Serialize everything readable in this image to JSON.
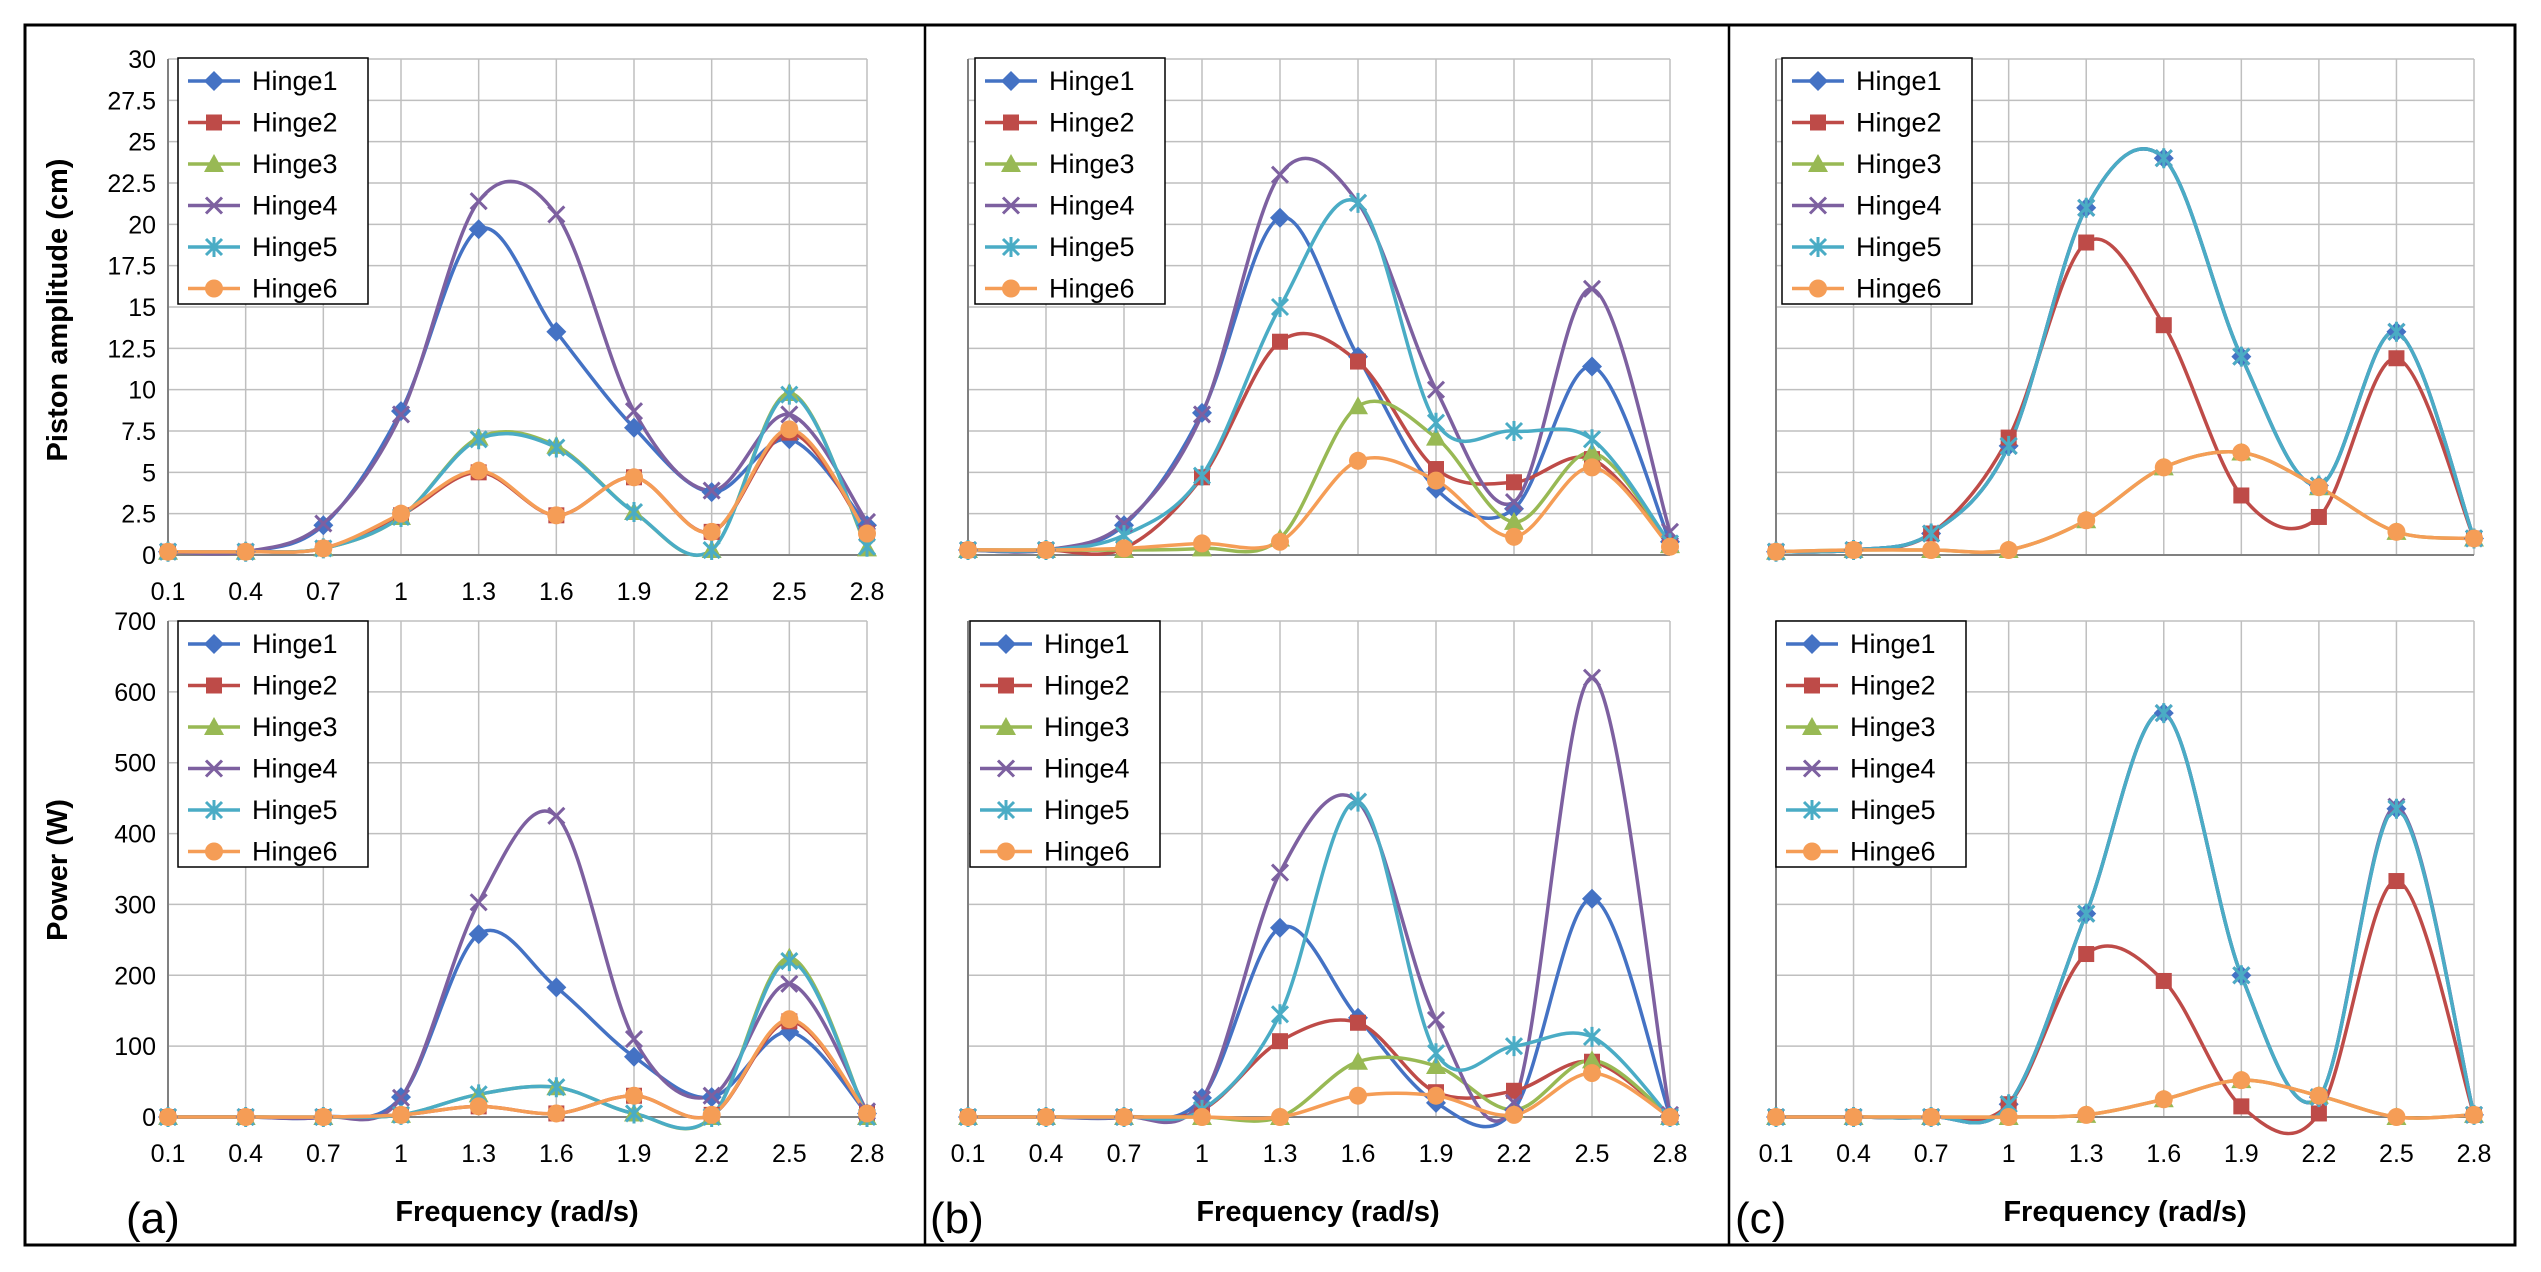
{
  "figure": {
    "panel_labels": [
      "(a)",
      "(b)",
      "(c)"
    ],
    "xlabel": "Frequency (rad/s)",
    "ylabel_top": "Piston amplitude (cm)",
    "ylabel_bottom": "Power (W)"
  },
  "series_style": [
    {
      "name": "Hinge1",
      "color": "#4472C4",
      "marker": "diamond"
    },
    {
      "name": "Hinge2",
      "color": "#BE4B48",
      "marker": "square"
    },
    {
      "name": "Hinge3",
      "color": "#98B954",
      "marker": "triangle"
    },
    {
      "name": "Hinge4",
      "color": "#7D60A0",
      "marker": "x"
    },
    {
      "name": "Hinge5",
      "color": "#4AACC5",
      "marker": "star"
    },
    {
      "name": "Hinge6",
      "color": "#F59D56",
      "marker": "circle"
    }
  ],
  "chart_data": [
    {
      "id": "a-amplitude",
      "type": "line",
      "panel": "(a)",
      "title": "",
      "xlabel": "",
      "ylabel": "Piston amplitude (cm)",
      "categories": [
        "0.1",
        "0.4",
        "0.7",
        "1",
        "1.3",
        "1.6",
        "1.9",
        "2.2",
        "2.5",
        "2.8"
      ],
      "ylim": [
        0,
        30
      ],
      "yticks": [
        "0",
        "2.5",
        "5",
        "7.5",
        "10",
        "12.5",
        "15",
        "17.5",
        "20",
        "22.5",
        "25",
        "27.5",
        "30"
      ],
      "legend": [
        "Hinge1",
        "Hinge2",
        "Hinge3",
        "Hinge4",
        "Hinge5",
        "Hinge6"
      ],
      "series": [
        {
          "name": "Hinge1",
          "values": [
            0.2,
            0.2,
            1.8,
            8.7,
            19.7,
            13.5,
            7.7,
            3.8,
            7.0,
            1.8
          ]
        },
        {
          "name": "Hinge2",
          "values": [
            0.2,
            0.2,
            0.4,
            2.4,
            5.0,
            2.4,
            4.7,
            1.4,
            7.4,
            1.3
          ]
        },
        {
          "name": "Hinge3",
          "values": [
            0.2,
            0.2,
            0.4,
            2.3,
            7.1,
            6.6,
            2.6,
            0.3,
            9.8,
            0.4
          ]
        },
        {
          "name": "Hinge4",
          "values": [
            0.2,
            0.2,
            1.9,
            8.5,
            21.4,
            20.6,
            8.7,
            3.9,
            8.5,
            2.0
          ]
        },
        {
          "name": "Hinge5",
          "values": [
            0.2,
            0.2,
            0.4,
            2.3,
            7.0,
            6.5,
            2.6,
            0.3,
            9.7,
            0.5
          ]
        },
        {
          "name": "Hinge6",
          "values": [
            0.2,
            0.2,
            0.4,
            2.5,
            5.1,
            2.4,
            4.7,
            1.4,
            7.6,
            1.3
          ]
        }
      ]
    },
    {
      "id": "b-amplitude",
      "type": "line",
      "panel": "(b)",
      "title": "",
      "xlabel": "",
      "ylabel": "",
      "categories": [
        "0.1",
        "0.4",
        "0.7",
        "1",
        "1.3",
        "1.6",
        "1.9",
        "2.2",
        "2.5",
        "2.8"
      ],
      "ylim": [
        0,
        30
      ],
      "yticks": [],
      "legend": [
        "Hinge1",
        "Hinge2",
        "Hinge3",
        "Hinge4",
        "Hinge5",
        "Hinge6"
      ],
      "series": [
        {
          "name": "Hinge1",
          "values": [
            0.3,
            0.3,
            1.8,
            8.6,
            20.4,
            12.0,
            4.0,
            2.8,
            11.4,
            0.8
          ]
        },
        {
          "name": "Hinge2",
          "values": [
            0.3,
            0.3,
            0.4,
            4.7,
            12.9,
            11.7,
            5.2,
            4.4,
            5.8,
            0.6
          ]
        },
        {
          "name": "Hinge3",
          "values": [
            0.3,
            0.3,
            0.3,
            0.4,
            1.0,
            9.0,
            7.1,
            2.0,
            6.2,
            0.6
          ]
        },
        {
          "name": "Hinge4",
          "values": [
            0.3,
            0.3,
            1.9,
            8.5,
            23.0,
            21.3,
            10.0,
            3.2,
            16.1,
            1.4
          ]
        },
        {
          "name": "Hinge5",
          "values": [
            0.3,
            0.3,
            1.2,
            4.8,
            15.0,
            21.3,
            8.0,
            7.5,
            7.0,
            0.7
          ]
        },
        {
          "name": "Hinge6",
          "values": [
            0.3,
            0.3,
            0.4,
            0.7,
            0.8,
            5.7,
            4.5,
            1.1,
            5.3,
            0.5
          ]
        }
      ]
    },
    {
      "id": "c-amplitude",
      "type": "line",
      "panel": "(c)",
      "title": "",
      "xlabel": "",
      "ylabel": "",
      "categories": [
        "0.1",
        "0.4",
        "0.7",
        "1",
        "1.3",
        "1.6",
        "1.9",
        "2.2",
        "2.5",
        "2.8"
      ],
      "ylim": [
        0,
        30
      ],
      "yticks": [],
      "legend": [
        "Hinge1",
        "Hinge2",
        "Hinge3",
        "Hinge4",
        "Hinge5",
        "Hinge6"
      ],
      "series": [
        {
          "name": "Hinge1",
          "values": [
            0.2,
            0.3,
            1.3,
            6.6,
            21.0,
            24.0,
            12.0,
            4.2,
            13.5,
            1.0
          ]
        },
        {
          "name": "Hinge2",
          "values": [
            0.2,
            0.3,
            1.3,
            7.1,
            18.9,
            13.9,
            3.6,
            2.3,
            11.9,
            1.0
          ]
        },
        {
          "name": "Hinge3",
          "values": [
            0.2,
            0.3,
            0.3,
            0.3,
            2.1,
            5.3,
            6.2,
            4.1,
            1.4,
            1.0
          ]
        },
        {
          "name": "Hinge4",
          "values": [
            0.2,
            0.3,
            1.3,
            6.6,
            21.0,
            24.0,
            12.0,
            4.2,
            13.5,
            1.0
          ]
        },
        {
          "name": "Hinge5",
          "values": [
            0.2,
            0.3,
            1.3,
            6.6,
            21.0,
            24.0,
            12.0,
            4.2,
            13.5,
            1.0
          ]
        },
        {
          "name": "Hinge6",
          "values": [
            0.2,
            0.3,
            0.3,
            0.3,
            2.1,
            5.3,
            6.2,
            4.1,
            1.4,
            1.0
          ]
        }
      ]
    },
    {
      "id": "a-power",
      "type": "line",
      "panel": "(a)",
      "title": "",
      "xlabel": "Frequency (rad/s)",
      "ylabel": "Power (W)",
      "categories": [
        "0.1",
        "0.4",
        "0.7",
        "1",
        "1.3",
        "1.6",
        "1.9",
        "2.2",
        "2.5",
        "2.8"
      ],
      "ylim": [
        0,
        700
      ],
      "yticks": [
        "0",
        "100",
        "200",
        "300",
        "400",
        "500",
        "600",
        "700"
      ],
      "legend": [
        "Hinge1",
        "Hinge2",
        "Hinge3",
        "Hinge4",
        "Hinge5",
        "Hinge6"
      ],
      "series": [
        {
          "name": "Hinge1",
          "values": [
            0,
            0,
            0,
            28,
            258,
            183,
            85,
            28,
            120,
            5
          ]
        },
        {
          "name": "Hinge2",
          "values": [
            0,
            0,
            0,
            3,
            15,
            5,
            30,
            3,
            135,
            5
          ]
        },
        {
          "name": "Hinge3",
          "values": [
            0,
            0,
            0,
            3,
            32,
            42,
            5,
            0,
            225,
            0
          ]
        },
        {
          "name": "Hinge4",
          "values": [
            0,
            0,
            0,
            27,
            303,
            425,
            110,
            30,
            188,
            8
          ]
        },
        {
          "name": "Hinge5",
          "values": [
            0,
            0,
            0,
            3,
            32,
            42,
            5,
            0,
            220,
            0
          ]
        },
        {
          "name": "Hinge6",
          "values": [
            0,
            0,
            0,
            3,
            15,
            5,
            30,
            3,
            138,
            5
          ]
        }
      ]
    },
    {
      "id": "b-power",
      "type": "line",
      "panel": "(b)",
      "title": "",
      "xlabel": "Frequency (rad/s)",
      "ylabel": "",
      "categories": [
        "0.1",
        "0.4",
        "0.7",
        "1",
        "1.3",
        "1.6",
        "1.9",
        "2.2",
        "2.5",
        "2.8"
      ],
      "ylim": [
        0,
        700
      ],
      "yticks": [],
      "legend": [
        "Hinge1",
        "Hinge2",
        "Hinge3",
        "Hinge4",
        "Hinge5",
        "Hinge6"
      ],
      "series": [
        {
          "name": "Hinge1",
          "values": [
            0,
            0,
            0,
            27,
            267,
            140,
            20,
            10,
            308,
            2
          ]
        },
        {
          "name": "Hinge2",
          "values": [
            0,
            0,
            0,
            10,
            107,
            133,
            35,
            37,
            78,
            0
          ]
        },
        {
          "name": "Hinge3",
          "values": [
            0,
            0,
            0,
            0,
            0,
            78,
            72,
            10,
            80,
            0
          ]
        },
        {
          "name": "Hinge4",
          "values": [
            0,
            0,
            0,
            25,
            345,
            445,
            137,
            20,
            620,
            3
          ]
        },
        {
          "name": "Hinge5",
          "values": [
            0,
            0,
            0,
            10,
            145,
            445,
            90,
            100,
            113,
            0
          ]
        },
        {
          "name": "Hinge6",
          "values": [
            0,
            0,
            0,
            0,
            0,
            30,
            30,
            3,
            62,
            0
          ]
        }
      ]
    },
    {
      "id": "c-power",
      "type": "line",
      "panel": "(c)",
      "title": "",
      "xlabel": "Frequency (rad/s)",
      "ylabel": "",
      "categories": [
        "0.1",
        "0.4",
        "0.7",
        "1",
        "1.3",
        "1.6",
        "1.9",
        "2.2",
        "2.5",
        "2.8"
      ],
      "ylim": [
        0,
        700
      ],
      "yticks": [],
      "legend": [
        "Hinge1",
        "Hinge2",
        "Hinge3",
        "Hinge4",
        "Hinge5",
        "Hinge6"
      ],
      "series": [
        {
          "name": "Hinge1",
          "values": [
            0,
            0,
            0,
            18,
            287,
            570,
            200,
            28,
            435,
            3
          ]
        },
        {
          "name": "Hinge2",
          "values": [
            0,
            0,
            0,
            18,
            230,
            192,
            15,
            5,
            333,
            3
          ]
        },
        {
          "name": "Hinge3",
          "values": [
            0,
            0,
            0,
            0,
            3,
            25,
            52,
            30,
            0,
            3
          ]
        },
        {
          "name": "Hinge4",
          "values": [
            0,
            0,
            0,
            18,
            287,
            570,
            200,
            28,
            438,
            3
          ]
        },
        {
          "name": "Hinge5",
          "values": [
            0,
            0,
            0,
            18,
            287,
            570,
            200,
            28,
            435,
            3
          ]
        },
        {
          "name": "Hinge6",
          "values": [
            0,
            0,
            0,
            0,
            3,
            25,
            52,
            30,
            0,
            3
          ]
        }
      ]
    }
  ]
}
